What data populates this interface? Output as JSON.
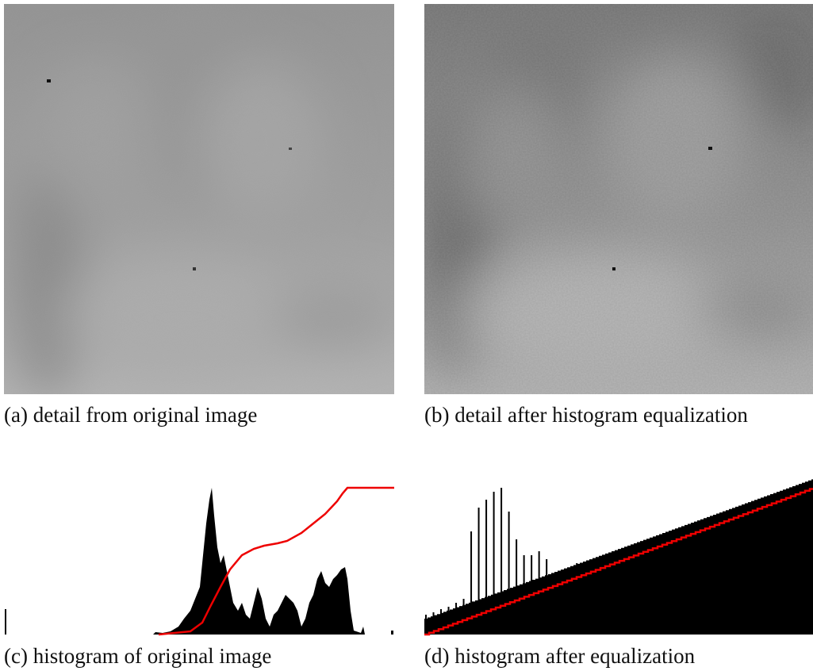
{
  "figure": {
    "panels": [
      {
        "caption": "(a) detail from original image"
      },
      {
        "caption": "(b) detail after histogram equalization"
      },
      {
        "caption": "(c) histogram of original image"
      },
      {
        "caption": "(d) histogram after equalization"
      }
    ]
  }
}
